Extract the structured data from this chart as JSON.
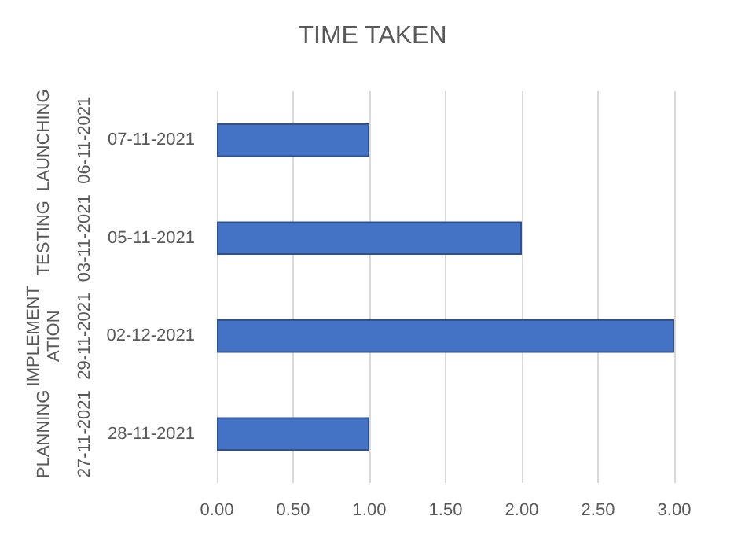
{
  "chart_data": {
    "type": "bar",
    "orientation": "horizontal",
    "title": "TIME TAKEN",
    "categories": [
      "07-11-2021",
      "05-11-2021",
      "02-12-2021",
      "28-11-2021"
    ],
    "values": [
      1,
      2,
      3,
      1
    ],
    "color": "#4472c4",
    "xlim": [
      0,
      3
    ],
    "xticks": [
      {
        "value": 0,
        "label": "0.00"
      },
      {
        "value": 0.5,
        "label": "0.50"
      },
      {
        "value": 1,
        "label": "1.00"
      },
      {
        "value": 1.5,
        "label": "1.50"
      },
      {
        "value": 2,
        "label": "2.00"
      },
      {
        "value": 2.5,
        "label": "2.50"
      },
      {
        "value": 3,
        "label": "3.00"
      }
    ],
    "grid": "x",
    "annotations": [
      "LAUNCHING",
      "06-11-2021",
      "TESTING",
      "03-11-2021",
      "IMPLEMENTATION",
      "29-11-2021",
      "PLANNING",
      "27-11-2021"
    ]
  }
}
